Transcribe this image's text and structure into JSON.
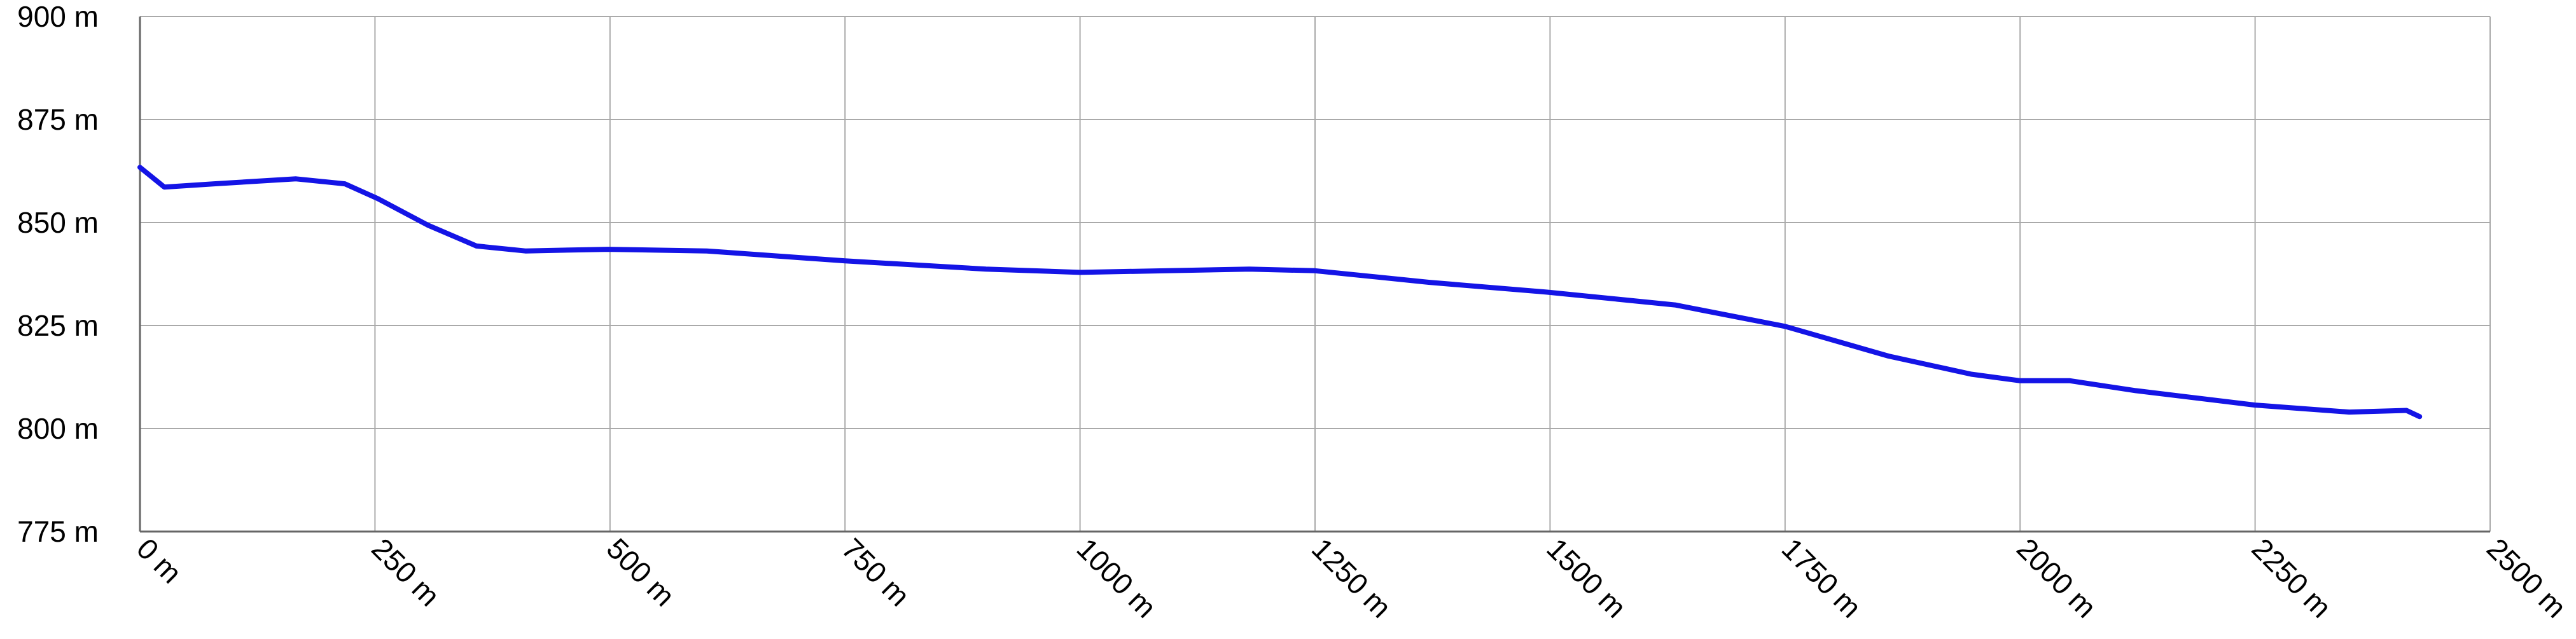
{
  "chart_data": {
    "type": "line",
    "x": [
      0,
      26,
      79,
      166,
      218,
      253,
      306,
      358,
      410,
      498,
      603,
      750,
      900,
      1000,
      1180,
      1250,
      1371,
      1497,
      1633,
      1750,
      1860,
      1948,
      2000,
      2053,
      2123,
      2250,
      2350,
      2411,
      2425
    ],
    "values": [
      863.4,
      858.6,
      859.4,
      860.6,
      859.4,
      855.8,
      849.4,
      844.3,
      843.1,
      843.5,
      843.1,
      840.7,
      838.7,
      837.9,
      838.7,
      838.3,
      835.5,
      833.1,
      830.0,
      824.8,
      817.6,
      813.2,
      811.6,
      811.6,
      809.2,
      805.7,
      804.0,
      804.4,
      802.9
    ],
    "color": "#1414e6",
    "xlim": [
      0,
      2500
    ],
    "xticks": [
      {
        "value": 0,
        "label": "0 m"
      },
      {
        "value": 250,
        "label": "250 m"
      },
      {
        "value": 500,
        "label": "500 m"
      },
      {
        "value": 750,
        "label": "750 m"
      },
      {
        "value": 1000,
        "label": "1000 m"
      },
      {
        "value": 1250,
        "label": "1250 m"
      },
      {
        "value": 1500,
        "label": "1500 m"
      },
      {
        "value": 1750,
        "label": "1750 m"
      },
      {
        "value": 2000,
        "label": "2000 m"
      },
      {
        "value": 2250,
        "label": "2250 m"
      },
      {
        "value": 2500,
        "label": "2500 m"
      }
    ],
    "ylim": [
      775,
      900
    ],
    "yticks": [
      {
        "value": 775,
        "label": "775 m"
      },
      {
        "value": 800,
        "label": "800 m"
      },
      {
        "value": 825,
        "label": "825 m"
      },
      {
        "value": 850,
        "label": "850 m"
      },
      {
        "value": 875,
        "label": "875 m"
      },
      {
        "value": 900,
        "label": "900 m"
      }
    ],
    "grid": true
  }
}
